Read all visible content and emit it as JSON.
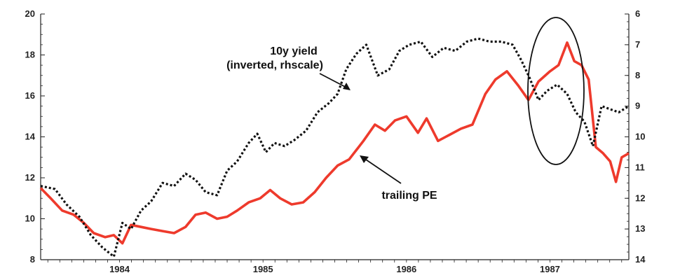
{
  "chart_data": {
    "type": "line",
    "title": "",
    "xlabel": "",
    "ylabel": "",
    "x_range": [
      1983.45,
      1987.55
    ],
    "left_axis": {
      "range": [
        8,
        20
      ],
      "ticks": [
        "8",
        "10",
        "12",
        "14",
        "16",
        "18",
        "20"
      ]
    },
    "right_axis": {
      "range": [
        6,
        14
      ],
      "inverted": true,
      "ticks": [
        "6",
        "7",
        "8",
        "9",
        "10",
        "11",
        "12",
        "13",
        "14"
      ]
    },
    "x_ticks": [
      {
        "label": "1984",
        "x": 1984.0
      },
      {
        "label": "1985",
        "x": 1985.0
      },
      {
        "label": "1986",
        "x": 1986.0
      },
      {
        "label": "1987",
        "x": 1987.0
      }
    ],
    "grid": false,
    "legend": "none",
    "series": [
      {
        "id": "trailing_pe",
        "axis": "left",
        "color": "#ee3a2c",
        "style": "solid",
        "x": [
          1983.45,
          1983.52,
          1983.6,
          1983.68,
          1983.75,
          1983.82,
          1983.9,
          1983.96,
          1984.02,
          1984.08,
          1984.15,
          1984.22,
          1984.3,
          1984.38,
          1984.46,
          1984.53,
          1984.6,
          1984.68,
          1984.75,
          1984.82,
          1984.9,
          1984.98,
          1985.05,
          1985.12,
          1985.2,
          1985.28,
          1985.36,
          1985.44,
          1985.52,
          1985.6,
          1985.7,
          1985.78,
          1985.85,
          1985.92,
          1986.0,
          1986.08,
          1986.14,
          1986.22,
          1986.3,
          1986.38,
          1986.46,
          1986.55,
          1986.62,
          1986.7,
          1986.78,
          1986.85,
          1986.92,
          1987.0,
          1987.06,
          1987.12,
          1987.17,
          1987.22,
          1987.27,
          1987.32,
          1987.37,
          1987.42,
          1987.46,
          1987.5,
          1987.55
        ],
        "y": [
          11.5,
          11.0,
          10.4,
          10.2,
          9.8,
          9.3,
          9.1,
          9.2,
          8.8,
          9.7,
          9.6,
          9.5,
          9.4,
          9.3,
          9.6,
          10.2,
          10.3,
          10.0,
          10.1,
          10.4,
          10.8,
          11.0,
          11.4,
          11.0,
          10.7,
          10.8,
          11.3,
          12.0,
          12.6,
          12.9,
          13.8,
          14.6,
          14.3,
          14.8,
          15.0,
          14.2,
          14.9,
          13.8,
          14.1,
          14.4,
          14.6,
          16.1,
          16.8,
          17.2,
          16.5,
          15.8,
          16.7,
          17.2,
          17.5,
          18.6,
          17.7,
          17.5,
          16.8,
          13.5,
          13.2,
          12.8,
          11.8,
          13.0,
          13.2
        ]
      },
      {
        "id": "10y_yield",
        "name": "10y yield (inverted, rhscale)",
        "axis": "right",
        "color": "#111111",
        "style": "dotted",
        "x": [
          1983.45,
          1983.55,
          1983.63,
          1983.72,
          1983.8,
          1983.88,
          1983.96,
          1984.02,
          1984.08,
          1984.15,
          1984.22,
          1984.3,
          1984.38,
          1984.46,
          1984.53,
          1984.6,
          1984.68,
          1984.75,
          1984.82,
          1984.9,
          1984.96,
          1985.02,
          1985.08,
          1985.15,
          1985.22,
          1985.3,
          1985.38,
          1985.46,
          1985.52,
          1985.58,
          1985.65,
          1985.72,
          1985.8,
          1985.88,
          1985.95,
          1986.02,
          1986.1,
          1986.18,
          1986.26,
          1986.34,
          1986.42,
          1986.5,
          1986.58,
          1986.66,
          1986.74,
          1986.8,
          1986.86,
          1986.92,
          1986.98,
          1987.05,
          1987.12,
          1987.18,
          1987.24,
          1987.3,
          1987.36,
          1987.42,
          1987.48,
          1987.55
        ],
        "y": [
          11.6,
          11.7,
          12.2,
          12.6,
          13.2,
          13.6,
          13.9,
          12.8,
          13.0,
          12.4,
          12.1,
          11.5,
          11.6,
          11.2,
          11.4,
          11.8,
          11.9,
          11.1,
          10.8,
          10.2,
          9.9,
          10.5,
          10.2,
          10.3,
          10.1,
          9.8,
          9.2,
          8.9,
          8.6,
          7.8,
          7.3,
          7.0,
          8.0,
          7.8,
          7.2,
          7.0,
          6.9,
          7.4,
          7.1,
          7.2,
          6.9,
          6.8,
          6.9,
          6.9,
          7.0,
          7.5,
          8.1,
          8.8,
          8.5,
          8.3,
          8.6,
          9.2,
          9.5,
          10.3,
          9.0,
          9.1,
          9.2,
          9.0
        ]
      }
    ],
    "annotations": [
      {
        "id": "yield-label",
        "lines": [
          "10y yield",
          "(inverted, rhscale)"
        ]
      },
      {
        "id": "pe-label",
        "lines": [
          "trailing PE"
        ]
      }
    ]
  }
}
